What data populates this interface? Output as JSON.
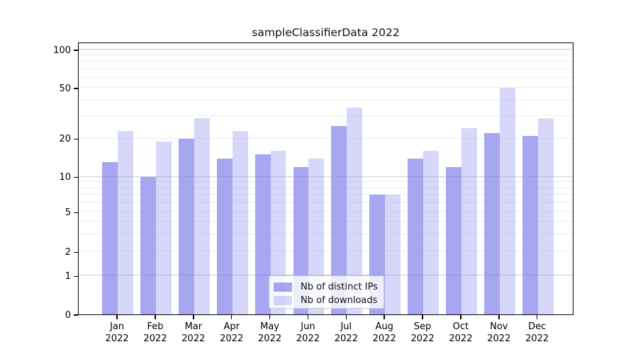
{
  "title": "sampleClassifierData 2022",
  "chart_data": {
    "type": "bar",
    "title": "sampleClassifierData 2022",
    "xlabel": "",
    "ylabel": "",
    "categories": [
      "Jan 2022",
      "Feb 2022",
      "Mar 2022",
      "Apr 2022",
      "May 2022",
      "Jun 2022",
      "Jul 2022",
      "Aug 2022",
      "Sep 2022",
      "Oct 2022",
      "Nov 2022",
      "Dec 2022"
    ],
    "series": [
      {
        "name": "Nb of distinct IPs",
        "color": "rgba(131,131,235,0.72)",
        "values": [
          13,
          10,
          20,
          14,
          15,
          12,
          25,
          7,
          14,
          12,
          22,
          21
        ]
      },
      {
        "name": "Nb of downloads",
        "color": "rgba(131,131,235,0.32)",
        "values": [
          23,
          19,
          29,
          23,
          16,
          14,
          35,
          7,
          16,
          24,
          50,
          29
        ]
      }
    ],
    "y_ticks": [
      0,
      1,
      2,
      5,
      10,
      20,
      50,
      100
    ],
    "ylim": [
      0,
      115
    ],
    "yscale": "symlog",
    "grid": true,
    "legend_position": "lower center",
    "colors": {
      "grid_major": "#cfcfcf",
      "grid_minor": "#ededed",
      "axis_spine": "#000000",
      "background": "#ffffff"
    }
  }
}
